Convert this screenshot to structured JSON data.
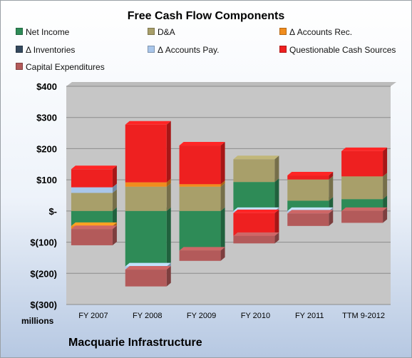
{
  "chart_data": {
    "type": "bar",
    "stacked": true,
    "title": "Free Cash Flow Components",
    "subtitle": "Macquarie Infrastructure",
    "units_label": "millions",
    "categories": [
      "FY 2007",
      "FY 2008",
      "FY 2009",
      "FY 2010",
      "FY 2011",
      "TTM 9-2012"
    ],
    "ylim": [
      -300,
      400
    ],
    "yticks": [
      400,
      300,
      200,
      100,
      0,
      -100,
      -200,
      -300
    ],
    "ytick_labels": [
      "$400",
      "$300",
      "$200",
      "$100",
      "$-",
      "$(100)",
      "$(200)",
      "$(300)"
    ],
    "grid": true,
    "legend_position": "top",
    "series": [
      {
        "name": "Net Income",
        "color": "#2e8b57",
        "values": [
          -48,
          -178,
          -127,
          93,
          33,
          38
        ]
      },
      {
        "name": "D&A",
        "color": "#a89f6a",
        "values": [
          58,
          78,
          78,
          73,
          68,
          73
        ]
      },
      {
        "name": "Δ Accounts Rec.",
        "color": "#f08c1e",
        "values": [
          -10,
          14,
          8,
          0,
          0,
          0
        ]
      },
      {
        "name": "Δ Inventories",
        "color": "#34495e",
        "values": [
          0,
          0,
          0,
          0,
          0,
          0
        ]
      },
      {
        "name": "Δ Accounts Pay.",
        "color": "#a9c6ea",
        "values": [
          18,
          -10,
          0,
          -7,
          -8,
          0
        ]
      },
      {
        "name": "Questionable Cash Sources",
        "color": "#ee2020",
        "values": [
          58,
          185,
          124,
          -73,
          13,
          81
        ]
      },
      {
        "name": "Capital Expenditures",
        "color": "#b35a5a",
        "values": [
          -52,
          -54,
          -33,
          -24,
          -40,
          -38
        ]
      }
    ]
  }
}
